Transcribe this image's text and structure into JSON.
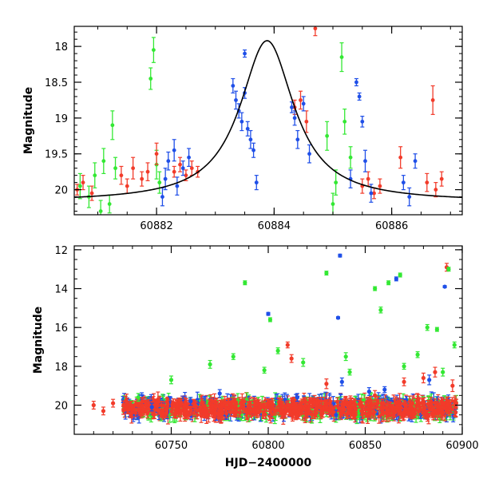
{
  "chart_data": [
    {
      "id": "top",
      "type": "scatter",
      "title": "",
      "xlabel": "",
      "ylabel": "Magnitude",
      "xlim": [
        60880.6,
        60887.2
      ],
      "ylim": [
        20.35,
        17.72
      ],
      "y_inverted": true,
      "xticks": [
        60882,
        60884,
        60886
      ],
      "yticks": [
        18,
        18.5,
        19,
        19.5,
        20
      ],
      "ytick_labels": [
        "18",
        "18.5",
        "19",
        "19.5",
        "20"
      ],
      "grid": false,
      "model_curve": {
        "name": "",
        "color": "#000000",
        "peak_x": 60883.88,
        "baseline_mag": 20.17,
        "peak_mag": 17.92,
        "width_days": 0.56
      },
      "series": [
        {
          "color": "#33e833",
          "points": [
            [
              60880.7,
              19.95,
              0.35
            ],
            [
              60880.85,
              20.1,
              0.3
            ],
            [
              60880.95,
              19.8,
              0.35
            ],
            [
              60881.05,
              20.3,
              0.3
            ],
            [
              60881.1,
              19.6,
              0.35
            ],
            [
              60881.2,
              20.2,
              0.25
            ],
            [
              60881.25,
              19.1,
              0.4
            ],
            [
              60881.3,
              19.7,
              0.3
            ],
            [
              60881.9,
              18.45,
              0.3
            ],
            [
              60881.95,
              18.05,
              0.35
            ],
            [
              60882.0,
              19.65,
              0.4
            ],
            [
              60882.05,
              19.9,
              0.3
            ],
            [
              60884.9,
              19.25,
              0.4
            ],
            [
              60885.0,
              20.2,
              0.3
            ],
            [
              60885.05,
              19.9,
              0.35
            ],
            [
              60885.15,
              18.15,
              0.4
            ],
            [
              60885.2,
              19.05,
              0.35
            ],
            [
              60885.3,
              19.55,
              0.3
            ]
          ]
        },
        {
          "color": "#f23b2a",
          "points": [
            [
              60880.65,
              20.0,
              0.15
            ],
            [
              60880.75,
              19.9,
              0.2
            ],
            [
              60880.9,
              20.05,
              0.2
            ],
            [
              60881.4,
              19.8,
              0.25
            ],
            [
              60881.5,
              19.95,
              0.2
            ],
            [
              60881.6,
              19.7,
              0.3
            ],
            [
              60881.75,
              19.85,
              0.2
            ],
            [
              60881.85,
              19.75,
              0.25
            ],
            [
              60882.0,
              19.5,
              0.3
            ],
            [
              60882.3,
              19.75,
              0.15
            ],
            [
              60882.4,
              19.65,
              0.2
            ],
            [
              60882.5,
              19.8,
              0.15
            ],
            [
              60882.6,
              19.7,
              0.2
            ],
            [
              60882.7,
              19.75,
              0.15
            ],
            [
              60884.35,
              18.85,
              0.2
            ],
            [
              60884.45,
              18.75,
              0.25
            ],
            [
              60884.55,
              19.05,
              0.3
            ],
            [
              60884.7,
              17.75,
              0.2
            ],
            [
              60885.5,
              19.95,
              0.2
            ],
            [
              60885.6,
              19.85,
              0.2
            ],
            [
              60885.7,
              20.05,
              0.15
            ],
            [
              60885.8,
              19.95,
              0.2
            ],
            [
              60886.15,
              19.55,
              0.3
            ],
            [
              60886.6,
              19.9,
              0.25
            ],
            [
              60886.7,
              18.75,
              0.4
            ],
            [
              60886.75,
              20.0,
              0.2
            ],
            [
              60886.85,
              19.85,
              0.2
            ]
          ]
        },
        {
          "color": "#1f4fe8",
          "points": [
            [
              60882.1,
              20.1,
              0.25
            ],
            [
              60882.15,
              19.85,
              0.3
            ],
            [
              60882.2,
              19.6,
              0.25
            ],
            [
              60882.3,
              19.45,
              0.3
            ],
            [
              60882.35,
              19.95,
              0.25
            ],
            [
              60882.45,
              19.7,
              0.2
            ],
            [
              60882.55,
              19.55,
              0.25
            ],
            [
              60883.3,
              18.55,
              0.2
            ],
            [
              60883.35,
              18.75,
              0.25
            ],
            [
              60883.4,
              18.9,
              0.2
            ],
            [
              60883.45,
              19.05,
              0.25
            ],
            [
              60883.5,
              18.1,
              0.1
            ],
            [
              60883.5,
              18.65,
              0.15
            ],
            [
              60883.55,
              19.15,
              0.2
            ],
            [
              60883.6,
              19.3,
              0.25
            ],
            [
              60883.65,
              19.45,
              0.2
            ],
            [
              60883.7,
              19.9,
              0.2
            ],
            [
              60884.3,
              18.85,
              0.15
            ],
            [
              60884.35,
              19.0,
              0.2
            ],
            [
              60884.4,
              19.3,
              0.25
            ],
            [
              60884.5,
              18.8,
              0.2
            ],
            [
              60884.6,
              19.5,
              0.25
            ],
            [
              60885.3,
              19.85,
              0.25
            ],
            [
              60885.4,
              18.5,
              0.1
            ],
            [
              60885.45,
              18.7,
              0.1
            ],
            [
              60885.5,
              19.05,
              0.15
            ],
            [
              60885.55,
              19.6,
              0.3
            ],
            [
              60885.65,
              20.05,
              0.25
            ],
            [
              60886.2,
              19.9,
              0.2
            ],
            [
              60886.3,
              20.1,
              0.25
            ],
            [
              60886.4,
              19.6,
              0.2
            ]
          ]
        }
      ]
    },
    {
      "id": "bottom",
      "type": "scatter",
      "title": "",
      "xlabel": "HJD−2400000",
      "ylabel": "Magnitude",
      "xlim": [
        60700,
        60900
      ],
      "ylim": [
        21.5,
        11.8
      ],
      "y_inverted": true,
      "xticks": [
        60750,
        60800,
        60850,
        60900
      ],
      "yticks": [
        12,
        14,
        16,
        18,
        20
      ],
      "ytick_labels": [
        "12",
        "14",
        "16",
        "18",
        "20"
      ],
      "grid": false,
      "dense_band": {
        "x_start": 60725,
        "x_end": 60897,
        "center_mag": 20.15,
        "spread_mag": 0.45
      },
      "series": [
        {
          "color": "#f23b2a",
          "points": [
            [
              60710,
              20.0,
              0.4
            ],
            [
              60715,
              20.3,
              0.4
            ],
            [
              60720,
              19.9,
              0.4
            ],
            [
              60728,
              20.2,
              0.5
            ],
            [
              60745,
              20.0,
              0.4
            ],
            [
              60765,
              20.1,
              0.4
            ],
            [
              60790,
              20.0,
              0.4
            ],
            [
              60810,
              16.9,
              0.3
            ],
            [
              60812,
              17.6,
              0.4
            ],
            [
              60830,
              18.9,
              0.5
            ],
            [
              60855,
              19.5,
              0.5
            ],
            [
              60870,
              18.8,
              0.4
            ],
            [
              60880,
              18.6,
              0.5
            ],
            [
              60886,
              18.3,
              0.5
            ],
            [
              60892,
              12.9,
              0.4
            ],
            [
              60895,
              19.0,
              0.6
            ]
          ]
        },
        {
          "color": "#33e833",
          "points": [
            [
              60733,
              19.6,
              0.4
            ],
            [
              60750,
              18.7,
              0.4
            ],
            [
              60770,
              17.9,
              0.4
            ],
            [
              60782,
              17.5,
              0.3
            ],
            [
              60788,
              13.7,
              0.2
            ],
            [
              60798,
              18.2,
              0.3
            ],
            [
              60801,
              15.6,
              0.2
            ],
            [
              60805,
              17.2,
              0.3
            ],
            [
              60818,
              17.8,
              0.4
            ],
            [
              60830,
              13.2,
              0.2
            ],
            [
              60840,
              17.5,
              0.4
            ],
            [
              60842,
              18.3,
              0.3
            ],
            [
              60855,
              14.0,
              0.2
            ],
            [
              60858,
              15.1,
              0.3
            ],
            [
              60862,
              13.7,
              0.2
            ],
            [
              60868,
              13.3,
              0.2
            ],
            [
              60870,
              18.0,
              0.3
            ],
            [
              60877,
              17.4,
              0.3
            ],
            [
              60882,
              16.0,
              0.3
            ],
            [
              60887,
              16.1,
              0.2
            ],
            [
              60890,
              18.3,
              0.4
            ],
            [
              60893,
              13.0,
              0.2
            ],
            [
              60896,
              16.9,
              0.3
            ]
          ]
        },
        {
          "color": "#1f4fe8",
          "points": [
            [
              60740,
              20.1,
              0.4
            ],
            [
              60760,
              19.8,
              0.4
            ],
            [
              60775,
              19.4,
              0.4
            ],
            [
              60800,
              15.3,
              0.15
            ],
            [
              60815,
              19.6,
              0.4
            ],
            [
              60835,
              20.5,
              0.5
            ],
            [
              60836,
              15.5,
              0.1
            ],
            [
              60837,
              12.3,
              0.15
            ],
            [
              60838,
              18.8,
              0.4
            ],
            [
              60852,
              19.3,
              0.4
            ],
            [
              60860,
              19.2,
              0.3
            ],
            [
              60866,
              13.5,
              0.2
            ],
            [
              60883,
              18.7,
              0.5
            ],
            [
              60891,
              13.9,
              0.1
            ]
          ]
        }
      ]
    }
  ]
}
